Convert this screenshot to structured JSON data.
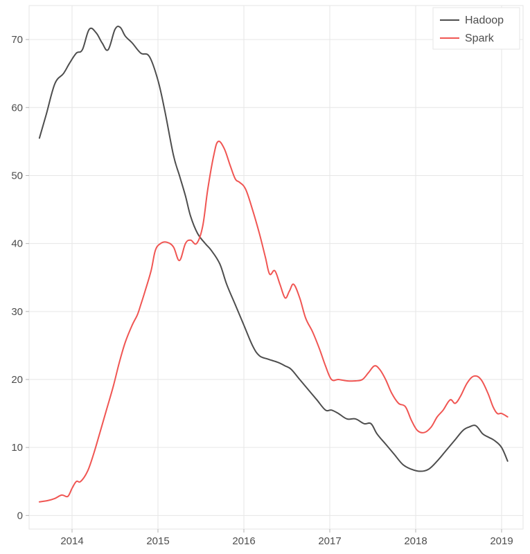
{
  "chart": {
    "type": "line",
    "background_color": "#ffffff",
    "plot_border_color": "#e6e6e6",
    "grid_color": "#e6e6e6",
    "grid_width": 1,
    "axis_font_size": 15,
    "axis_font_color": "#4d4d4d",
    "line_width": 2,
    "xlim": [
      2013.5,
      2019.25
    ],
    "ylim": [
      -2,
      75
    ],
    "x_ticks": [
      2014,
      2015,
      2016,
      2017,
      2018,
      2019
    ],
    "x_tick_labels": [
      "2014",
      "2015",
      "2016",
      "2017",
      "2018",
      "2019"
    ],
    "y_ticks": [
      0,
      10,
      20,
      30,
      40,
      50,
      60,
      70
    ],
    "y_tick_labels": [
      "0",
      "10",
      "20",
      "30",
      "40",
      "50",
      "60",
      "70"
    ],
    "legend": {
      "position": "top-right",
      "border_color": "#e6e6e6",
      "background": "#ffffff",
      "font_size": 16,
      "items": [
        {
          "label": "Hadoop",
          "color": "#4d4d4d"
        },
        {
          "label": "Spark",
          "color": "#f05552"
        }
      ]
    },
    "series": [
      {
        "name": "Hadoop",
        "color": "#4d4d4d",
        "points": [
          [
            2013.62,
            55.5
          ],
          [
            2013.7,
            59.0
          ],
          [
            2013.8,
            63.5
          ],
          [
            2013.9,
            65.0
          ],
          [
            2013.97,
            66.5
          ],
          [
            2014.05,
            68.0
          ],
          [
            2014.12,
            68.5
          ],
          [
            2014.2,
            71.5
          ],
          [
            2014.28,
            71.0
          ],
          [
            2014.35,
            69.5
          ],
          [
            2014.42,
            68.5
          ],
          [
            2014.5,
            71.5
          ],
          [
            2014.56,
            71.8
          ],
          [
            2014.62,
            70.5
          ],
          [
            2014.7,
            69.5
          ],
          [
            2014.8,
            68.0
          ],
          [
            2014.9,
            67.5
          ],
          [
            2015.0,
            64.0
          ],
          [
            2015.08,
            59.5
          ],
          [
            2015.18,
            53.0
          ],
          [
            2015.25,
            50.0
          ],
          [
            2015.32,
            47.0
          ],
          [
            2015.38,
            44.0
          ],
          [
            2015.46,
            41.5
          ],
          [
            2015.55,
            40.0
          ],
          [
            2015.62,
            39.0
          ],
          [
            2015.72,
            37.0
          ],
          [
            2015.8,
            34.0
          ],
          [
            2015.9,
            31.0
          ],
          [
            2016.0,
            28.0
          ],
          [
            2016.1,
            25.0
          ],
          [
            2016.18,
            23.5
          ],
          [
            2016.28,
            23.0
          ],
          [
            2016.4,
            22.5
          ],
          [
            2016.48,
            22.0
          ],
          [
            2016.55,
            21.5
          ],
          [
            2016.65,
            20.0
          ],
          [
            2016.75,
            18.5
          ],
          [
            2016.85,
            17.0
          ],
          [
            2016.95,
            15.5
          ],
          [
            2017.02,
            15.5
          ],
          [
            2017.1,
            15.0
          ],
          [
            2017.2,
            14.2
          ],
          [
            2017.3,
            14.2
          ],
          [
            2017.4,
            13.5
          ],
          [
            2017.48,
            13.5
          ],
          [
            2017.55,
            12.0
          ],
          [
            2017.65,
            10.5
          ],
          [
            2017.75,
            9.0
          ],
          [
            2017.85,
            7.5
          ],
          [
            2017.95,
            6.8
          ],
          [
            2018.05,
            6.5
          ],
          [
            2018.15,
            6.8
          ],
          [
            2018.25,
            8.0
          ],
          [
            2018.35,
            9.5
          ],
          [
            2018.45,
            11.0
          ],
          [
            2018.55,
            12.5
          ],
          [
            2018.62,
            13.0
          ],
          [
            2018.7,
            13.2
          ],
          [
            2018.78,
            12.0
          ],
          [
            2018.85,
            11.5
          ],
          [
            2018.92,
            11.0
          ],
          [
            2019.0,
            10.0
          ],
          [
            2019.07,
            8.0
          ]
        ]
      },
      {
        "name": "Spark",
        "color": "#f05552",
        "points": [
          [
            2013.62,
            2.0
          ],
          [
            2013.72,
            2.2
          ],
          [
            2013.8,
            2.5
          ],
          [
            2013.88,
            3.0
          ],
          [
            2013.95,
            2.8
          ],
          [
            2014.0,
            4.0
          ],
          [
            2014.05,
            5.0
          ],
          [
            2014.1,
            5.0
          ],
          [
            2014.18,
            6.5
          ],
          [
            2014.25,
            9.0
          ],
          [
            2014.32,
            12.0
          ],
          [
            2014.4,
            15.5
          ],
          [
            2014.48,
            19.0
          ],
          [
            2014.55,
            22.5
          ],
          [
            2014.62,
            25.5
          ],
          [
            2014.7,
            28.0
          ],
          [
            2014.76,
            29.5
          ],
          [
            2014.8,
            31.0
          ],
          [
            2014.85,
            33.0
          ],
          [
            2014.92,
            36.0
          ],
          [
            2014.97,
            39.0
          ],
          [
            2015.03,
            40.0
          ],
          [
            2015.1,
            40.2
          ],
          [
            2015.18,
            39.5
          ],
          [
            2015.25,
            37.5
          ],
          [
            2015.32,
            40.0
          ],
          [
            2015.38,
            40.5
          ],
          [
            2015.45,
            40.0
          ],
          [
            2015.52,
            42.5
          ],
          [
            2015.58,
            48.0
          ],
          [
            2015.65,
            53.0
          ],
          [
            2015.7,
            55.0
          ],
          [
            2015.77,
            54.0
          ],
          [
            2015.84,
            51.5
          ],
          [
            2015.9,
            49.5
          ],
          [
            2015.95,
            49.0
          ],
          [
            2016.02,
            48.0
          ],
          [
            2016.1,
            45.0
          ],
          [
            2016.18,
            41.5
          ],
          [
            2016.25,
            38.0
          ],
          [
            2016.3,
            35.5
          ],
          [
            2016.36,
            36.0
          ],
          [
            2016.42,
            34.0
          ],
          [
            2016.48,
            32.0
          ],
          [
            2016.53,
            33.0
          ],
          [
            2016.58,
            34.0
          ],
          [
            2016.65,
            32.0
          ],
          [
            2016.72,
            29.0
          ],
          [
            2016.8,
            27.0
          ],
          [
            2016.88,
            24.5
          ],
          [
            2016.95,
            22.0
          ],
          [
            2017.02,
            20.0
          ],
          [
            2017.1,
            20.0
          ],
          [
            2017.2,
            19.8
          ],
          [
            2017.3,
            19.8
          ],
          [
            2017.38,
            20.0
          ],
          [
            2017.45,
            21.0
          ],
          [
            2017.52,
            22.0
          ],
          [
            2017.58,
            21.5
          ],
          [
            2017.65,
            20.0
          ],
          [
            2017.72,
            18.0
          ],
          [
            2017.8,
            16.5
          ],
          [
            2017.88,
            16.0
          ],
          [
            2017.95,
            14.0
          ],
          [
            2018.02,
            12.5
          ],
          [
            2018.1,
            12.2
          ],
          [
            2018.18,
            13.0
          ],
          [
            2018.25,
            14.5
          ],
          [
            2018.32,
            15.5
          ],
          [
            2018.4,
            17.0
          ],
          [
            2018.46,
            16.5
          ],
          [
            2018.52,
            17.5
          ],
          [
            2018.6,
            19.5
          ],
          [
            2018.68,
            20.5
          ],
          [
            2018.76,
            20.0
          ],
          [
            2018.84,
            18.0
          ],
          [
            2018.9,
            16.0
          ],
          [
            2018.95,
            15.0
          ],
          [
            2019.0,
            15.0
          ],
          [
            2019.07,
            14.5
          ]
        ]
      }
    ]
  }
}
